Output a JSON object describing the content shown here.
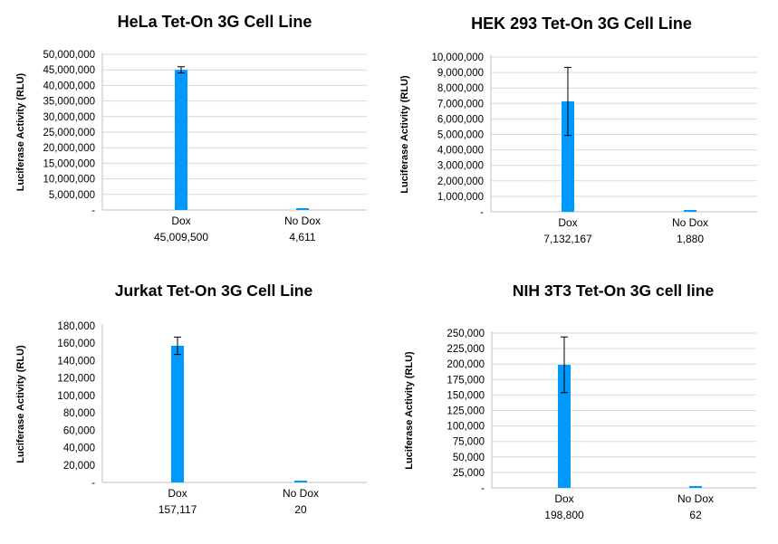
{
  "chart_data": [
    {
      "type": "bar",
      "title": "HeLa Tet-On 3G Cell Line",
      "ylabel": "Luciferase Activity (RLU)",
      "categories": [
        "Dox",
        "No Dox"
      ],
      "values": [
        45009500,
        4611
      ],
      "value_labels": [
        "45,009,500",
        "4,611"
      ],
      "error": [
        1000000,
        0
      ],
      "ylim": [
        0,
        50000000
      ],
      "yticks": [
        0,
        5000000,
        10000000,
        15000000,
        20000000,
        25000000,
        30000000,
        35000000,
        40000000,
        45000000,
        50000000
      ],
      "ytick_labels": [
        "-",
        "5,000,000",
        "10,000,000",
        "15,000,000",
        "20,000,000",
        "25,000,000",
        "30,000,000",
        "35,000,000",
        "40,000,000",
        "45,000,000",
        "50,000,000"
      ],
      "grid": true,
      "color": "#0099ff"
    },
    {
      "type": "bar",
      "title": "HEK 293 Tet-On 3G Cell Line",
      "ylabel": "Luciferase Activity (RLU)",
      "categories": [
        "Dox",
        "No Dox"
      ],
      "values": [
        7132167,
        1880
      ],
      "value_labels": [
        "7,132,167",
        "1,880"
      ],
      "error": [
        2200000,
        0
      ],
      "ylim": [
        0,
        10000000
      ],
      "yticks": [
        0,
        1000000,
        2000000,
        3000000,
        4000000,
        5000000,
        6000000,
        7000000,
        8000000,
        9000000,
        10000000
      ],
      "ytick_labels": [
        "-",
        "1,000,000",
        "2,000,000",
        "3,000,000",
        "4,000,000",
        "5,000,000",
        "6,000,000",
        "7,000,000",
        "8,000,000",
        "9,000,000",
        "10,000,000"
      ],
      "grid": true,
      "color": "#0099ff"
    },
    {
      "type": "bar",
      "title": "Jurkat Tet-On 3G Cell Line",
      "ylabel": "Luciferase Activity (RLU)",
      "categories": [
        "Dox",
        "No Dox"
      ],
      "values": [
        157117,
        20
      ],
      "value_labels": [
        "157,117",
        "20"
      ],
      "error": [
        10000,
        0
      ],
      "ylim": [
        0,
        180000
      ],
      "yticks": [
        0,
        20000,
        40000,
        60000,
        80000,
        100000,
        120000,
        140000,
        160000,
        180000
      ],
      "ytick_labels": [
        "-",
        "20,000",
        "40,000",
        "60,000",
        "80,000",
        "100,000",
        "120,000",
        "140,000",
        "160,000",
        "180,000"
      ],
      "grid": false,
      "color": "#0099ff"
    },
    {
      "type": "bar",
      "title": "NIH 3T3 Tet-On 3G cell line",
      "ylabel": "Luciferase Activity (RLU)",
      "categories": [
        "Dox",
        "No Dox"
      ],
      "values": [
        198800,
        62
      ],
      "value_labels": [
        "198,800",
        "62"
      ],
      "error": [
        45000,
        0
      ],
      "ylim": [
        0,
        250000
      ],
      "yticks": [
        0,
        25000,
        50000,
        75000,
        100000,
        125000,
        150000,
        175000,
        200000,
        225000,
        250000
      ],
      "ytick_labels": [
        "-",
        "25,000",
        "50,000",
        "75,000",
        "100,000",
        "125,000",
        "150,000",
        "175,000",
        "200,000",
        "225,000",
        "250,000"
      ],
      "grid": true,
      "color": "#0099ff"
    }
  ]
}
